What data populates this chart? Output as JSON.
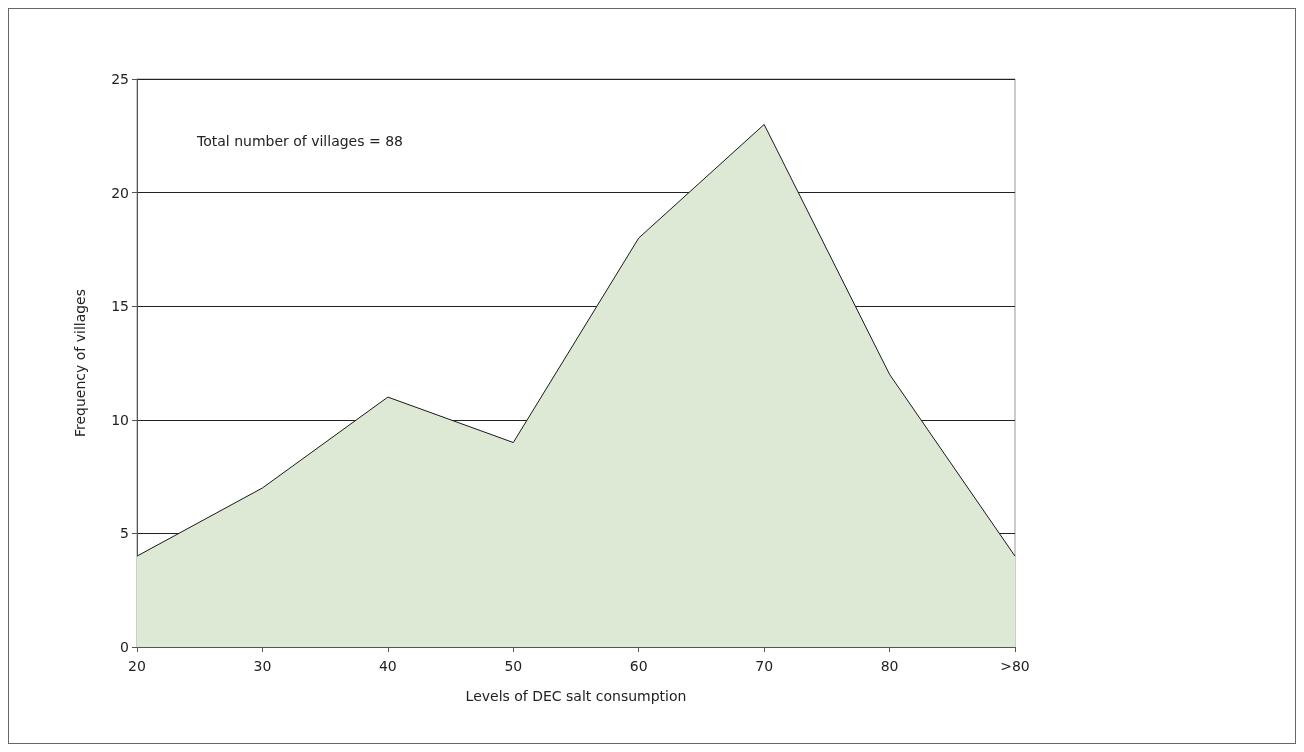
{
  "chart_data": {
    "type": "area",
    "xlabel": "Levels of DEC salt consumption",
    "ylabel": "Frequency of villages",
    "categories": [
      "20",
      "30",
      "40",
      "50",
      "60",
      "70",
      "80",
      ">80"
    ],
    "series": [
      {
        "color": "#dde9d4",
        "values": [
          4,
          7,
          11,
          9,
          18,
          23,
          12,
          4
        ]
      }
    ],
    "ylim": [
      0,
      25
    ],
    "yticks": [
      0,
      5,
      10,
      15,
      20,
      25
    ],
    "grid": "y",
    "marker": "none",
    "line_style": "solid",
    "annotations": [
      "Total number of villages = 88"
    ]
  }
}
